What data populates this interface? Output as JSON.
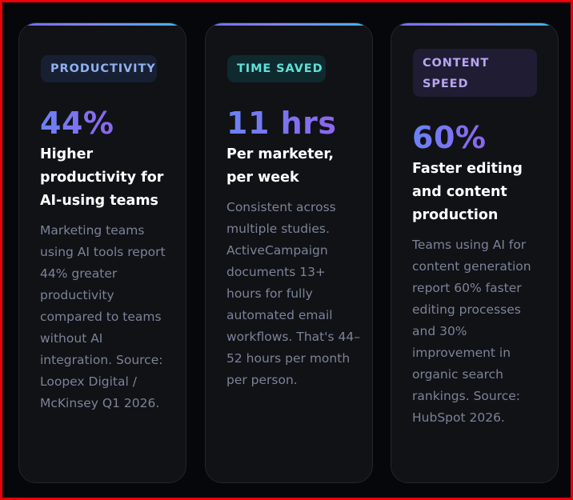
{
  "cards": [
    {
      "tag": "PRODUCTIVITY",
      "stat": "44%",
      "headline": "Higher productivity for AI-using teams",
      "body": "Marketing teams using AI tools report 44% greater productivity compared to teams without AI integration. Source: Loopex Digital / McKinsey Q1 2026."
    },
    {
      "tag": "TIME SAVED",
      "stat": "11 hrs",
      "headline": "Per marketer, per week",
      "body": "Consistent across multiple studies. ActiveCampaign documents 13+ hours for fully automated email workflows. That's 44–52 hours per month per person."
    },
    {
      "tag": "CONTENT SPEED",
      "stat": "60%",
      "headline": "Faster editing and content production",
      "body": "Teams using AI for content generation report 60% faster editing processes and 30% improvement in organic search rankings. Source: HubSpot 2026."
    }
  ],
  "colors": {
    "page_background": "#06070b",
    "card_background": "#111216",
    "accent_gradient_start": "#6a82f4",
    "accent_gradient_end": "#8d66ee",
    "top_bar_end": "#3fb6ea",
    "productivity_tag": "#8fb0ee",
    "time_saved_tag": "#5fe0d8",
    "content_speed_tag": "#b7a6f0",
    "body_text": "#7a8396",
    "outer_border": "#e8000b"
  }
}
